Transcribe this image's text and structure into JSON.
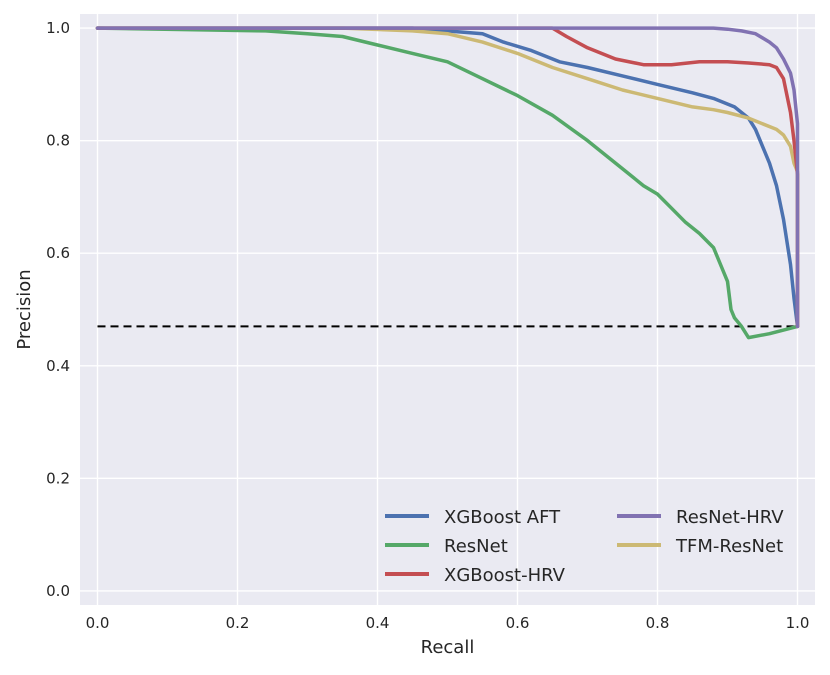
{
  "chart_data": {
    "type": "line",
    "title": "",
    "xlabel": "Recall",
    "ylabel": "Precision",
    "xlim": [
      -0.025,
      1.025
    ],
    "ylim": [
      -0.025,
      1.025
    ],
    "xticks": [
      "0.0",
      "0.2",
      "0.4",
      "0.6",
      "0.8",
      "1.0"
    ],
    "yticks": [
      "0.0",
      "0.2",
      "0.4",
      "0.6",
      "0.8",
      "1.0"
    ],
    "grid": true,
    "background": "#EAEAF2",
    "legend": {
      "position": "bottom-right",
      "columns": 2
    },
    "baseline": {
      "y": 0.47,
      "style": "dashed",
      "color": "#000000"
    },
    "series": [
      {
        "name": "XGBoost AFT",
        "color": "#4C72B0",
        "x": [
          0,
          0.3,
          0.45,
          0.55,
          0.58,
          0.62,
          0.66,
          0.7,
          0.75,
          0.8,
          0.85,
          0.88,
          0.91,
          0.93,
          0.94,
          0.95,
          0.96,
          0.97,
          0.98,
          0.99,
          0.995,
          1.0
        ],
        "y": [
          1.0,
          1.0,
          1.0,
          0.99,
          0.975,
          0.96,
          0.94,
          0.93,
          0.915,
          0.9,
          0.885,
          0.875,
          0.86,
          0.84,
          0.82,
          0.79,
          0.76,
          0.72,
          0.66,
          0.58,
          0.52,
          0.47
        ]
      },
      {
        "name": "ResNet",
        "color": "#55A868",
        "x": [
          0,
          0.24,
          0.3,
          0.35,
          0.4,
          0.45,
          0.5,
          0.55,
          0.6,
          0.65,
          0.7,
          0.75,
          0.78,
          0.8,
          0.82,
          0.84,
          0.86,
          0.88,
          0.89,
          0.9,
          0.905,
          0.91,
          0.92,
          0.93,
          0.96,
          1.0
        ],
        "y": [
          1.0,
          0.995,
          0.99,
          0.985,
          0.97,
          0.955,
          0.94,
          0.91,
          0.88,
          0.845,
          0.8,
          0.75,
          0.72,
          0.705,
          0.68,
          0.655,
          0.635,
          0.61,
          0.58,
          0.55,
          0.5,
          0.485,
          0.47,
          0.45,
          0.457,
          0.47
        ]
      },
      {
        "name": "XGBoost-HRV",
        "color": "#C44E52",
        "x": [
          0,
          0.5,
          0.65,
          0.67,
          0.7,
          0.74,
          0.78,
          0.82,
          0.86,
          0.9,
          0.93,
          0.96,
          0.97,
          0.98,
          0.985,
          0.99,
          0.995,
          1.0,
          1.0
        ],
        "y": [
          1.0,
          1.0,
          1.0,
          0.985,
          0.965,
          0.945,
          0.935,
          0.935,
          0.94,
          0.94,
          0.938,
          0.935,
          0.93,
          0.91,
          0.88,
          0.85,
          0.8,
          0.74,
          0.47
        ]
      },
      {
        "name": "ResNet-HRV",
        "color": "#8172B2",
        "x": [
          0,
          0.5,
          0.7,
          0.8,
          0.88,
          0.9,
          0.92,
          0.94,
          0.96,
          0.97,
          0.98,
          0.99,
          0.995,
          1.0,
          1.0
        ],
        "y": [
          1.0,
          1.0,
          1.0,
          1.0,
          1.0,
          0.998,
          0.995,
          0.99,
          0.975,
          0.965,
          0.945,
          0.92,
          0.89,
          0.83,
          0.47
        ]
      },
      {
        "name": "TFM-ResNet",
        "color": "#CCB974",
        "x": [
          0,
          0.35,
          0.45,
          0.5,
          0.55,
          0.6,
          0.65,
          0.7,
          0.75,
          0.8,
          0.85,
          0.88,
          0.9,
          0.93,
          0.95,
          0.97,
          0.98,
          0.99,
          0.995,
          1.0,
          1.0
        ],
        "y": [
          1.0,
          1.0,
          0.995,
          0.99,
          0.975,
          0.955,
          0.93,
          0.91,
          0.89,
          0.875,
          0.86,
          0.855,
          0.85,
          0.84,
          0.83,
          0.82,
          0.81,
          0.79,
          0.76,
          0.745,
          0.47
        ]
      }
    ]
  }
}
